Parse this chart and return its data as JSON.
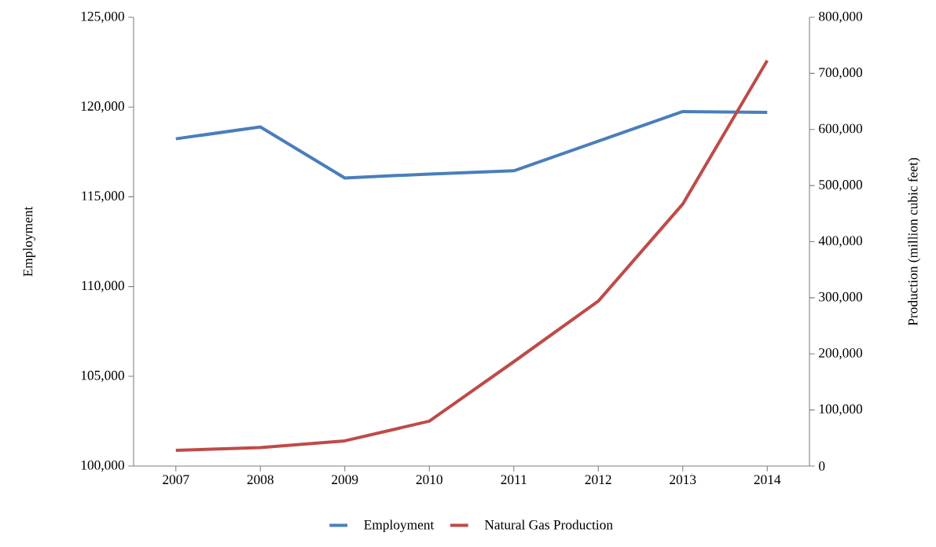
{
  "chart_data": {
    "type": "line",
    "categories": [
      "2007",
      "2008",
      "2009",
      "2010",
      "2011",
      "2012",
      "2013",
      "2014"
    ],
    "series": [
      {
        "name": "Employment",
        "color": "#4a7ebb",
        "values": [
          118230,
          118890,
          116050,
          116270,
          116450,
          118100,
          119750,
          119700
        ]
      },
      {
        "name": "Natural Gas Production",
        "color": "#be4b48",
        "axis": "y2",
        "values": [
          28000,
          33000,
          45000,
          80000,
          186000,
          294000,
          467000,
          723000
        ]
      }
    ],
    "ylabel": "Employment",
    "y2label": "Production (million cubic feet)",
    "ylim": [
      100000,
      125000
    ],
    "yticks": [
      {
        "value": 100000,
        "label": "100,000"
      },
      {
        "value": 105000,
        "label": "105,000"
      },
      {
        "value": 110000,
        "label": "110,000"
      },
      {
        "value": 115000,
        "label": "115,000"
      },
      {
        "value": 120000,
        "label": "120,000"
      },
      {
        "value": 125000,
        "label": "125,000"
      }
    ],
    "y2lim": [
      0,
      800000
    ],
    "y2ticks": [
      0,
      {
        "value": 100000,
        "label": "100,000"
      },
      {
        "value": 200000,
        "label": "200,000"
      },
      {
        "value": 300000,
        "label": "300,000"
      },
      {
        "value": 400000,
        "label": "400,000"
      },
      {
        "value": 500000,
        "label": "500,000"
      },
      {
        "value": 600000,
        "label": "600,000"
      },
      {
        "value": 700000,
        "label": "700,000"
      },
      {
        "value": 800000,
        "label": "800,000"
      }
    ],
    "legend": "bottom",
    "grid": false,
    "marker": "none",
    "line_style": "solid"
  }
}
